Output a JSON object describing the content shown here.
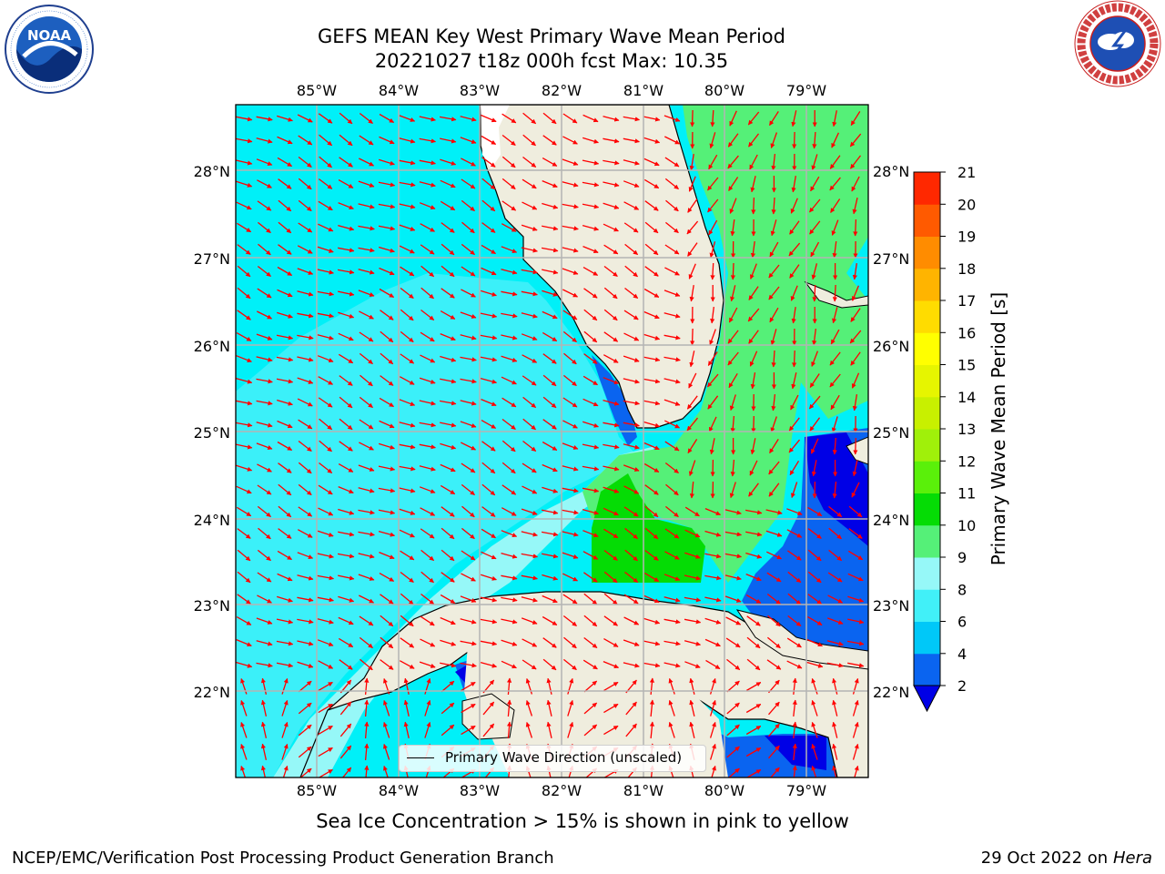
{
  "title": {
    "line1": "GEFS MEAN Key West Primary Wave Mean Period",
    "line2": "20221027 t18z 000h fcst   Max: 10.35"
  },
  "logos": {
    "noaa": {
      "text": "NOAA",
      "ring_text": "NATIONAL OCEANIC AND ATMOSPHERIC ADMINISTRATION · U.S. DEPARTMENT OF COMMERCE"
    },
    "nws": {
      "ring_text": "NATIONAL WEATHER SERVICE"
    }
  },
  "map": {
    "lon_ticks": [
      "85°W",
      "84°W",
      "83°W",
      "82°W",
      "81°W",
      "80°W",
      "79°W"
    ],
    "lat_ticks": [
      "28°N",
      "27°N",
      "26°N",
      "25°N",
      "24°N",
      "23°N",
      "22°N"
    ],
    "legend_label": "Primary Wave Direction (unscaled)"
  },
  "colorbar": {
    "label": "Primary Wave Mean Period [s]",
    "ticks": [
      "2",
      "4",
      "6",
      "8",
      "9",
      "10",
      "11",
      "12",
      "13",
      "14",
      "15",
      "16",
      "17",
      "18",
      "19",
      "20",
      "21"
    ],
    "colors": [
      "#0a64f0",
      "#00c8f8",
      "#41f0f8",
      "#96f8f8",
      "#55f078",
      "#05dc05",
      "#5af00a",
      "#a0f00a",
      "#c8f000",
      "#e6f500",
      "#ffff00",
      "#ffdc00",
      "#ffb400",
      "#ff8c00",
      "#ff5a00",
      "#ff2800",
      "#ff0000"
    ],
    "under_color": "#0000e6",
    "extend": "min"
  },
  "colors": {
    "land": "#efedde",
    "arrow": "#ff0000",
    "grid": "#b4b4b4"
  },
  "caption": "Sea Ice Concentration > 15% is shown in pink to yellow",
  "footer": {
    "left": "NCEP/EMC/Verification Post Processing Product Generation Branch",
    "right_prefix": "29 Oct 2022 on ",
    "right_machine": "Hera"
  }
}
